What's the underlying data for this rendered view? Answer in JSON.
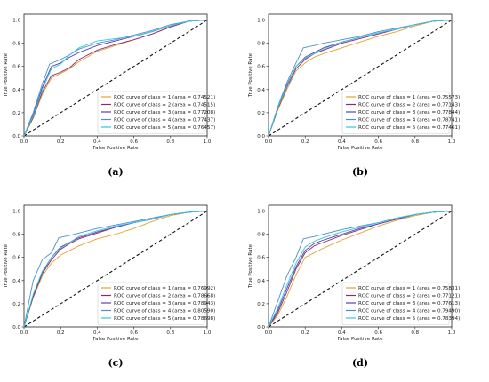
{
  "chart_data": [
    {
      "type": "line",
      "caption": "(a)",
      "xlabel": "False Positive Rate",
      "ylabel": "True Positive Rate",
      "xlim": [
        0,
        1
      ],
      "ylim": [
        0,
        1.05
      ],
      "xticks": [
        "0.0",
        "0.2",
        "0.4",
        "0.6",
        "0.8",
        "1.0"
      ],
      "yticks": [
        "0.0",
        "0.2",
        "0.4",
        "0.6",
        "0.8",
        "1.0"
      ],
      "grid": false,
      "legend": "lower-right",
      "diagonal": true,
      "series": [
        {
          "name": "ROC curve of class = 1 (area = 0.74521)",
          "color": "#e0a431",
          "x": [
            0,
            0.05,
            0.1,
            0.15,
            0.2,
            0.25,
            0.3,
            0.4,
            0.5,
            0.6,
            0.7,
            0.8,
            0.9,
            1
          ],
          "y": [
            0,
            0.15,
            0.36,
            0.5,
            0.54,
            0.58,
            0.64,
            0.73,
            0.78,
            0.83,
            0.88,
            0.94,
            0.99,
            1
          ]
        },
        {
          "name": "ROC curve of class = 2 (area = 0.74515)",
          "color": "#8a2a70",
          "x": [
            0,
            0.05,
            0.1,
            0.15,
            0.2,
            0.25,
            0.3,
            0.4,
            0.5,
            0.6,
            0.7,
            0.8,
            0.9,
            1
          ],
          "y": [
            0,
            0.16,
            0.38,
            0.52,
            0.55,
            0.59,
            0.66,
            0.74,
            0.79,
            0.83,
            0.88,
            0.94,
            0.99,
            1
          ]
        },
        {
          "name": "ROC curve of class = 3 (area = 0.77208)",
          "color": "#5b3fb0",
          "x": [
            0,
            0.05,
            0.1,
            0.15,
            0.2,
            0.25,
            0.3,
            0.4,
            0.5,
            0.6,
            0.7,
            0.8,
            0.9,
            1
          ],
          "y": [
            0,
            0.18,
            0.42,
            0.6,
            0.63,
            0.68,
            0.72,
            0.78,
            0.82,
            0.86,
            0.9,
            0.95,
            0.99,
            1
          ]
        },
        {
          "name": "ROC curve of class = 4 (area = 0.77437)",
          "color": "#4a8fd6",
          "x": [
            0,
            0.05,
            0.1,
            0.14,
            0.2,
            0.25,
            0.3,
            0.4,
            0.5,
            0.6,
            0.7,
            0.8,
            0.9,
            1
          ],
          "y": [
            0,
            0.2,
            0.45,
            0.62,
            0.66,
            0.7,
            0.75,
            0.8,
            0.83,
            0.87,
            0.91,
            0.96,
            0.99,
            1
          ]
        },
        {
          "name": "ROC curve of class = 5 (area = 0.76457)",
          "color": "#33c8dc",
          "x": [
            0,
            0.05,
            0.1,
            0.15,
            0.2,
            0.25,
            0.3,
            0.4,
            0.5,
            0.6,
            0.7,
            0.8,
            0.9,
            1
          ],
          "y": [
            0,
            0.17,
            0.4,
            0.58,
            0.62,
            0.7,
            0.76,
            0.82,
            0.84,
            0.86,
            0.9,
            0.95,
            0.99,
            1
          ]
        }
      ]
    },
    {
      "type": "line",
      "caption": "(b)",
      "xlabel": "False Positive Rate",
      "ylabel": "True Positive Rate",
      "xlim": [
        0,
        1
      ],
      "ylim": [
        0,
        1.05
      ],
      "xticks": [
        "0.0",
        "0.2",
        "0.4",
        "0.6",
        "0.8",
        "1.0"
      ],
      "yticks": [
        "0.0",
        "0.2",
        "0.4",
        "0.6",
        "0.8",
        "1.0"
      ],
      "grid": false,
      "legend": "lower-right",
      "diagonal": true,
      "series": [
        {
          "name": "ROC curve of class = 1 (area = 0.75573)",
          "color": "#e0a431",
          "x": [
            0,
            0.05,
            0.1,
            0.15,
            0.2,
            0.25,
            0.3,
            0.4,
            0.5,
            0.6,
            0.7,
            0.8,
            0.9,
            1
          ],
          "y": [
            0,
            0.22,
            0.4,
            0.56,
            0.63,
            0.68,
            0.71,
            0.76,
            0.81,
            0.86,
            0.9,
            0.95,
            0.99,
            1
          ]
        },
        {
          "name": "ROC curve of class = 2 (area = 0.77143)",
          "color": "#8a2a70",
          "x": [
            0,
            0.05,
            0.1,
            0.15,
            0.2,
            0.25,
            0.3,
            0.4,
            0.5,
            0.6,
            0.7,
            0.8,
            0.9,
            1
          ],
          "y": [
            0,
            0.23,
            0.42,
            0.58,
            0.66,
            0.71,
            0.74,
            0.8,
            0.84,
            0.88,
            0.92,
            0.96,
            0.99,
            1
          ]
        },
        {
          "name": "ROC curve of class = 3 (area = 0.77844)",
          "color": "#5b3fb0",
          "x": [
            0,
            0.05,
            0.1,
            0.15,
            0.2,
            0.25,
            0.3,
            0.4,
            0.5,
            0.6,
            0.7,
            0.8,
            0.9,
            1
          ],
          "y": [
            0,
            0.24,
            0.44,
            0.6,
            0.68,
            0.72,
            0.76,
            0.81,
            0.85,
            0.89,
            0.92,
            0.96,
            0.99,
            1
          ]
        },
        {
          "name": "ROC curve of class = 4 (area = 0.78741)",
          "color": "#4a8fd6",
          "x": [
            0,
            0.05,
            0.1,
            0.15,
            0.19,
            0.25,
            0.3,
            0.4,
            0.5,
            0.6,
            0.7,
            0.8,
            0.9,
            1
          ],
          "y": [
            0,
            0.25,
            0.46,
            0.63,
            0.76,
            0.78,
            0.8,
            0.83,
            0.86,
            0.9,
            0.93,
            0.96,
            0.99,
            1
          ]
        },
        {
          "name": "ROC curve of class = 5 (area = 0.77461)",
          "color": "#33c8dc",
          "x": [
            0,
            0.05,
            0.1,
            0.15,
            0.2,
            0.25,
            0.3,
            0.4,
            0.5,
            0.6,
            0.7,
            0.8,
            0.9,
            1
          ],
          "y": [
            0,
            0.24,
            0.43,
            0.6,
            0.67,
            0.71,
            0.75,
            0.81,
            0.85,
            0.89,
            0.92,
            0.96,
            0.99,
            1
          ]
        }
      ]
    },
    {
      "type": "line",
      "caption": "(c)",
      "xlabel": "False Positive Rate",
      "ylabel": "True Positive Rate",
      "xlim": [
        0,
        1
      ],
      "ylim": [
        0,
        1.05
      ],
      "xticks": [
        "0.0",
        "0.2",
        "0.4",
        "0.6",
        "0.8",
        "1.0"
      ],
      "yticks": [
        "0.0",
        "0.2",
        "0.4",
        "0.6",
        "0.8",
        "1.0"
      ],
      "grid": false,
      "legend": "lower-right",
      "diagonal": true,
      "series": [
        {
          "name": "ROC curve of class = 1 (area = 0.76992)",
          "color": "#e0a431",
          "x": [
            0,
            0.05,
            0.1,
            0.15,
            0.2,
            0.25,
            0.3,
            0.4,
            0.5,
            0.6,
            0.7,
            0.8,
            0.9,
            1
          ],
          "y": [
            0,
            0.25,
            0.44,
            0.55,
            0.62,
            0.66,
            0.7,
            0.76,
            0.8,
            0.85,
            0.91,
            0.96,
            0.99,
            1
          ]
        },
        {
          "name": "ROC curve of class = 2 (area = 0.78668)",
          "color": "#8a2a70",
          "x": [
            0,
            0.05,
            0.1,
            0.15,
            0.2,
            0.25,
            0.3,
            0.4,
            0.5,
            0.6,
            0.7,
            0.8,
            0.9,
            1
          ],
          "y": [
            0,
            0.26,
            0.46,
            0.58,
            0.67,
            0.72,
            0.76,
            0.81,
            0.86,
            0.9,
            0.93,
            0.97,
            0.99,
            1
          ]
        },
        {
          "name": "ROC curve of class = 3 (area = 0.78943)",
          "color": "#5b3fb0",
          "x": [
            0,
            0.05,
            0.1,
            0.15,
            0.2,
            0.25,
            0.3,
            0.4,
            0.5,
            0.6,
            0.7,
            0.8,
            0.9,
            1
          ],
          "y": [
            0,
            0.27,
            0.47,
            0.6,
            0.69,
            0.73,
            0.77,
            0.82,
            0.86,
            0.9,
            0.93,
            0.97,
            0.99,
            1
          ]
        },
        {
          "name": "ROC curve of class = 4 (area = 0.80590)",
          "color": "#4a8fd6",
          "x": [
            0,
            0.05,
            0.1,
            0.15,
            0.19,
            0.25,
            0.3,
            0.4,
            0.5,
            0.6,
            0.7,
            0.8,
            0.9,
            1
          ],
          "y": [
            0,
            0.4,
            0.58,
            0.64,
            0.77,
            0.79,
            0.81,
            0.85,
            0.88,
            0.91,
            0.94,
            0.97,
            0.99,
            1
          ]
        },
        {
          "name": "ROC curve of class = 5 (area = 0.78698)",
          "color": "#33c8dc",
          "x": [
            0,
            0.05,
            0.1,
            0.15,
            0.2,
            0.25,
            0.3,
            0.4,
            0.5,
            0.6,
            0.7,
            0.8,
            0.9,
            1
          ],
          "y": [
            0,
            0.28,
            0.48,
            0.6,
            0.68,
            0.73,
            0.78,
            0.83,
            0.87,
            0.9,
            0.93,
            0.97,
            0.99,
            1
          ]
        }
      ]
    },
    {
      "type": "line",
      "caption": "(d)",
      "xlabel": "False Positive Rate",
      "ylabel": "True Positive Rate",
      "xlim": [
        0,
        1
      ],
      "ylim": [
        0,
        1.05
      ],
      "xticks": [
        "0.0",
        "0.2",
        "0.4",
        "0.6",
        "0.8",
        "1.0"
      ],
      "yticks": [
        "0.0",
        "0.2",
        "0.4",
        "0.6",
        "0.8",
        "1.0"
      ],
      "grid": false,
      "legend": "lower-right",
      "diagonal": true,
      "series": [
        {
          "name": "ROC curve of class = 1 (area = 0.75831)",
          "color": "#e0a431",
          "x": [
            0,
            0.05,
            0.1,
            0.15,
            0.2,
            0.25,
            0.3,
            0.4,
            0.5,
            0.6,
            0.7,
            0.8,
            0.9,
            1
          ],
          "y": [
            0,
            0.1,
            0.26,
            0.45,
            0.6,
            0.64,
            0.68,
            0.75,
            0.81,
            0.87,
            0.92,
            0.96,
            0.99,
            1
          ]
        },
        {
          "name": "ROC curve of class = 2 (area = 0.77121)",
          "color": "#8a2a70",
          "x": [
            0,
            0.05,
            0.1,
            0.15,
            0.2,
            0.25,
            0.3,
            0.4,
            0.5,
            0.6,
            0.7,
            0.8,
            0.9,
            1
          ],
          "y": [
            0,
            0.12,
            0.3,
            0.5,
            0.64,
            0.7,
            0.73,
            0.79,
            0.84,
            0.89,
            0.93,
            0.97,
            0.99,
            1
          ]
        },
        {
          "name": "ROC curve of class = 3 (area = 0.77613)",
          "color": "#5b3fb0",
          "x": [
            0,
            0.05,
            0.1,
            0.15,
            0.2,
            0.25,
            0.3,
            0.4,
            0.5,
            0.6,
            0.7,
            0.8,
            0.9,
            1
          ],
          "y": [
            0,
            0.14,
            0.33,
            0.52,
            0.66,
            0.72,
            0.75,
            0.8,
            0.85,
            0.89,
            0.93,
            0.97,
            0.99,
            1
          ]
        },
        {
          "name": "ROC curve of class = 4 (area = 0.79490)",
          "color": "#4a8fd6",
          "x": [
            0,
            0.05,
            0.1,
            0.15,
            0.19,
            0.25,
            0.3,
            0.4,
            0.5,
            0.6,
            0.7,
            0.8,
            0.9,
            1
          ],
          "y": [
            0,
            0.22,
            0.44,
            0.6,
            0.76,
            0.78,
            0.8,
            0.84,
            0.87,
            0.9,
            0.94,
            0.97,
            0.99,
            1
          ]
        },
        {
          "name": "ROC curve of class = 5 (area = 0.78394)",
          "color": "#33c8dc",
          "x": [
            0,
            0.05,
            0.1,
            0.15,
            0.2,
            0.25,
            0.3,
            0.4,
            0.5,
            0.6,
            0.7,
            0.8,
            0.9,
            1
          ],
          "y": [
            0,
            0.16,
            0.36,
            0.55,
            0.69,
            0.74,
            0.77,
            0.82,
            0.86,
            0.9,
            0.94,
            0.97,
            0.99,
            1
          ]
        }
      ]
    }
  ]
}
